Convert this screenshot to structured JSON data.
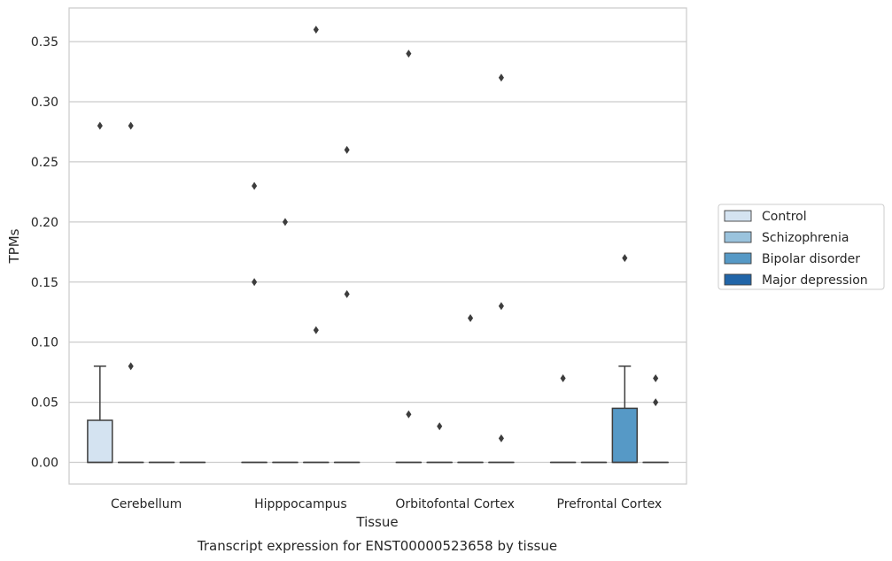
{
  "chart_data": {
    "type": "box",
    "title": "Transcript expression for ENST00000523658 by tissue",
    "xlabel": "Tissue",
    "ylabel": "TPMs",
    "ylim": [
      -0.018,
      0.378
    ],
    "yticks": [
      "0.00",
      "0.05",
      "0.10",
      "0.15",
      "0.20",
      "0.25",
      "0.30",
      "0.35"
    ],
    "grid": "horizontal",
    "legend_position": "right",
    "categories": [
      "Cerebellum",
      "Hipppocampus",
      "Orbitofontal Cortex",
      "Prefrontal Cortex"
    ],
    "series": [
      {
        "name": "Control",
        "color": "#d4e3f1",
        "boxes": [
          {
            "q1": 0.0,
            "median": 0.0,
            "q3": 0.035,
            "whisker_low": 0.0,
            "whisker_high": 0.08,
            "outliers": [
              0.28
            ]
          },
          {
            "q1": 0.0,
            "median": 0.0,
            "q3": 0.0,
            "whisker_low": 0.0,
            "whisker_high": 0.0,
            "outliers": [
              0.23,
              0.15
            ]
          },
          {
            "q1": 0.0,
            "median": 0.0,
            "q3": 0.0,
            "whisker_low": 0.0,
            "whisker_high": 0.0,
            "outliers": [
              0.34,
              0.04
            ]
          },
          {
            "q1": 0.0,
            "median": 0.0,
            "q3": 0.0,
            "whisker_low": 0.0,
            "whisker_high": 0.0,
            "outliers": [
              0.07
            ]
          }
        ]
      },
      {
        "name": "Schizophrenia",
        "color": "#9ac3dd",
        "boxes": [
          {
            "q1": 0.0,
            "median": 0.0,
            "q3": 0.0,
            "whisker_low": 0.0,
            "whisker_high": 0.0,
            "outliers": [
              0.28,
              0.08
            ]
          },
          {
            "q1": 0.0,
            "median": 0.0,
            "q3": 0.0,
            "whisker_low": 0.0,
            "whisker_high": 0.0,
            "outliers": [
              0.2
            ]
          },
          {
            "q1": 0.0,
            "median": 0.0,
            "q3": 0.0,
            "whisker_low": 0.0,
            "whisker_high": 0.0,
            "outliers": [
              0.03
            ]
          },
          {
            "q1": 0.0,
            "median": 0.0,
            "q3": 0.0,
            "whisker_low": 0.0,
            "whisker_high": 0.0,
            "outliers": []
          }
        ]
      },
      {
        "name": "Bipolar disorder",
        "color": "#5699c6",
        "boxes": [
          {
            "q1": 0.0,
            "median": 0.0,
            "q3": 0.0,
            "whisker_low": 0.0,
            "whisker_high": 0.0,
            "outliers": []
          },
          {
            "q1": 0.0,
            "median": 0.0,
            "q3": 0.0,
            "whisker_low": 0.0,
            "whisker_high": 0.0,
            "outliers": [
              0.36,
              0.11
            ]
          },
          {
            "q1": 0.0,
            "median": 0.0,
            "q3": 0.0,
            "whisker_low": 0.0,
            "whisker_high": 0.0,
            "outliers": [
              0.12
            ]
          },
          {
            "q1": 0.0,
            "median": 0.0,
            "q3": 0.045,
            "whisker_low": 0.0,
            "whisker_high": 0.08,
            "outliers": [
              0.17
            ]
          }
        ]
      },
      {
        "name": "Major depression",
        "color": "#2165a8",
        "boxes": [
          {
            "q1": 0.0,
            "median": 0.0,
            "q3": 0.0,
            "whisker_low": 0.0,
            "whisker_high": 0.0,
            "outliers": []
          },
          {
            "q1": 0.0,
            "median": 0.0,
            "q3": 0.0,
            "whisker_low": 0.0,
            "whisker_high": 0.0,
            "outliers": [
              0.26,
              0.14
            ]
          },
          {
            "q1": 0.0,
            "median": 0.0,
            "q3": 0.0,
            "whisker_low": 0.0,
            "whisker_high": 0.0,
            "outliers": [
              0.32,
              0.13,
              0.02
            ]
          },
          {
            "q1": 0.0,
            "median": 0.0,
            "q3": 0.0,
            "whisker_low": 0.0,
            "whisker_high": 0.0,
            "outliers": [
              0.07,
              0.05
            ]
          }
        ]
      }
    ]
  }
}
